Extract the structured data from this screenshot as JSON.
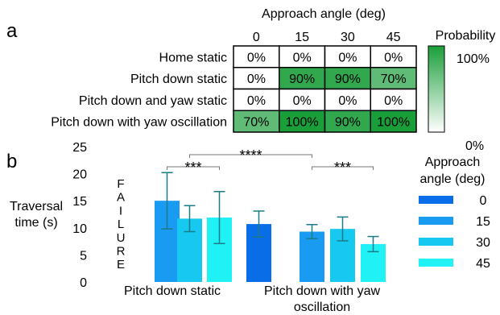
{
  "chart_data": [
    {
      "panel": "a",
      "type": "heatmap",
      "title": "Approach angle (deg)",
      "columns": [
        "0",
        "15",
        "30",
        "45"
      ],
      "rows": [
        "Home static",
        "Pitch down static",
        "Pitch down and yaw static",
        "Pitch down with yaw oscillation"
      ],
      "values": [
        [
          0,
          0,
          0,
          0
        ],
        [
          0,
          90,
          90,
          70
        ],
        [
          0,
          0,
          0,
          0
        ],
        [
          70,
          100,
          90,
          100
        ]
      ],
      "cell_labels": [
        [
          "0%",
          "0%",
          "0%",
          "0%"
        ],
        [
          "0%",
          "90%",
          "90%",
          "70%"
        ],
        [
          "0%",
          "0%",
          "0%",
          "0%"
        ],
        [
          "70%",
          "100%",
          "90%",
          "100%"
        ]
      ],
      "colorbar": {
        "label": "Probability",
        "max_label": "100%",
        "min_label": "0%",
        "max_color": "#1a9e3a",
        "min_color": "#ffffff"
      }
    },
    {
      "panel": "b",
      "type": "bar",
      "ylabel_lines": [
        "Traversal",
        "time (s)"
      ],
      "ylim": [
        0,
        25
      ],
      "yticks": [
        0,
        5,
        10,
        15,
        20,
        25
      ],
      "groups": [
        {
          "label_lines": [
            "Pitch down static"
          ],
          "failure_text": [
            "F",
            "A",
            "I",
            "L",
            "U",
            "R",
            "E"
          ]
        },
        {
          "label_lines": [
            "Pitch down with yaw",
            "oscillation"
          ]
        }
      ],
      "legend": {
        "title_lines": [
          "Approach",
          "angle (deg)"
        ],
        "entries": [
          "0",
          "15",
          "30",
          "45"
        ]
      },
      "colors": [
        "#0a6de8",
        "#1a9bf2",
        "#17c8f0",
        "#1ff1f5"
      ],
      "error_bar_color": "#1b7b86",
      "failure_color": "#ff0000",
      "series": [
        {
          "name": "0",
          "values": [
            null,
            10.7
          ],
          "errors": [
            null,
            2.4
          ]
        },
        {
          "name": "15",
          "values": [
            15.0,
            9.3
          ],
          "errors": [
            5.2,
            1.3
          ]
        },
        {
          "name": "30",
          "values": [
            11.7,
            9.8
          ],
          "errors": [
            2.4,
            2.2
          ]
        },
        {
          "name": "45",
          "values": [
            11.9,
            7.0
          ],
          "errors": [
            4.8,
            1.4
          ]
        }
      ],
      "significance": [
        {
          "label": "***",
          "from": [
            0,
            1
          ],
          "to": [
            0,
            3
          ]
        },
        {
          "label": "***",
          "from": [
            1,
            1
          ],
          "to": [
            1,
            3
          ]
        },
        {
          "label": "****",
          "from": [
            0,
            2
          ],
          "to": [
            1,
            1
          ]
        }
      ]
    }
  ],
  "panel_labels": {
    "a": "a",
    "b": "b"
  }
}
